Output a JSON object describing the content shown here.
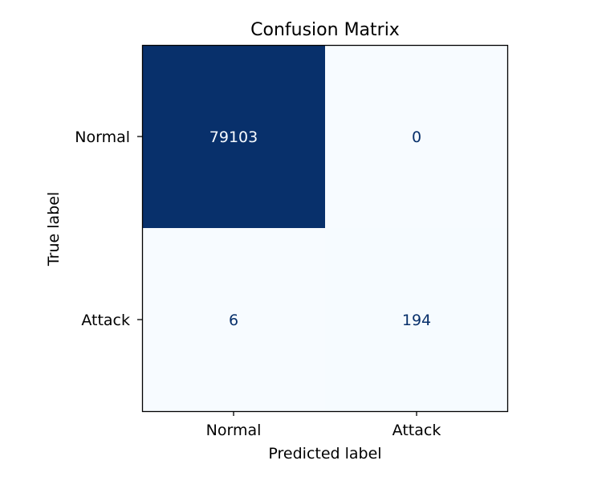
{
  "chart_data": {
    "type": "heatmap",
    "title": "Confusion Matrix",
    "xlabel": "Predicted label",
    "ylabel": "True label",
    "x_categories": [
      "Normal",
      "Attack"
    ],
    "y_categories": [
      "Normal",
      "Attack"
    ],
    "values": [
      [
        79103,
        0
      ],
      [
        6,
        194
      ]
    ],
    "colormap": "Blues",
    "colors": {
      "low": "#f7fbff",
      "high": "#08306b",
      "text_on_dark": "#f7fbff",
      "text_on_light": "#08306b"
    },
    "colorbar": false,
    "grid": false
  }
}
